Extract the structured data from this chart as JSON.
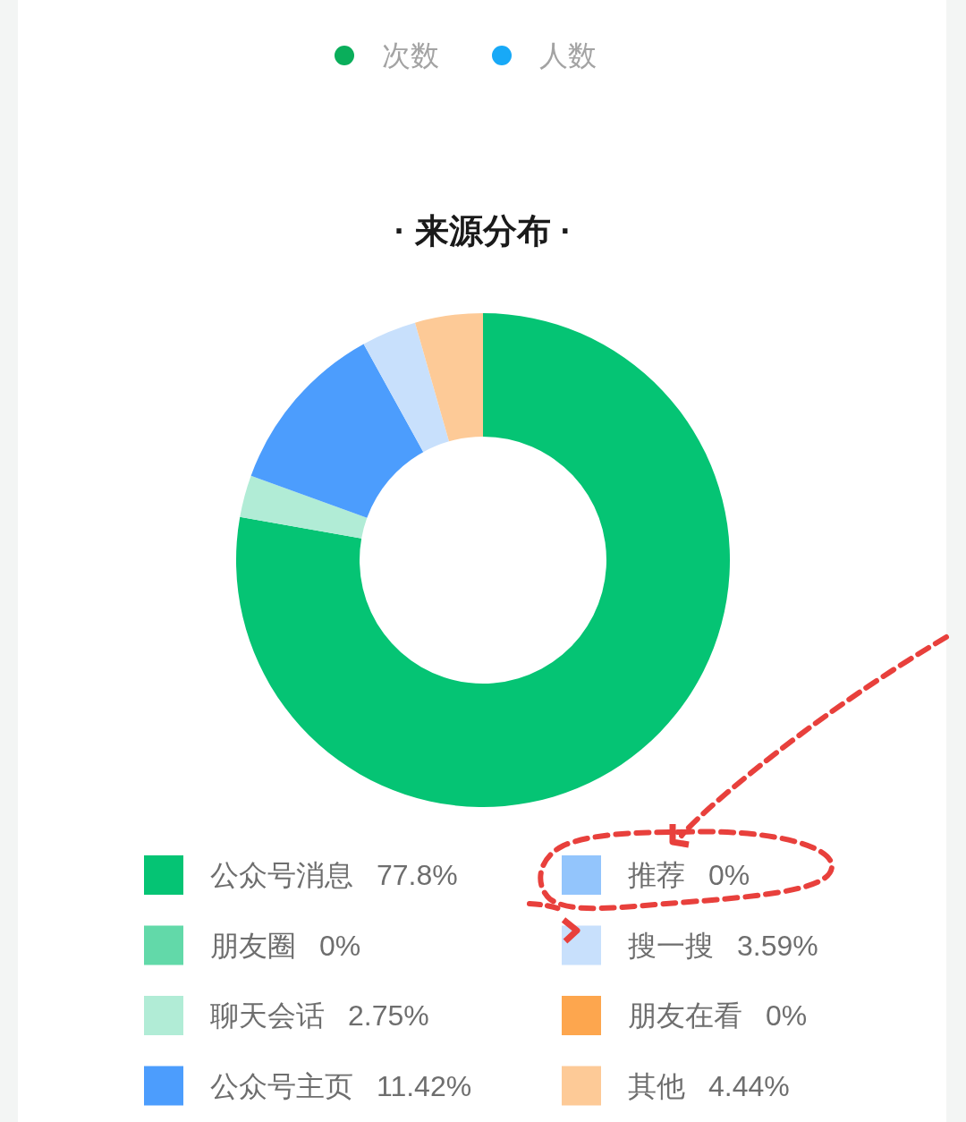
{
  "chart_data": [
    {
      "type": "other",
      "categories": [
        "次数",
        "人数"
      ],
      "colors": [
        "#0aae5b",
        "#18a9f7"
      ]
    },
    {
      "type": "donut",
      "title": "· 来源分布 ·",
      "categories": [
        "公众号消息",
        "朋友圈",
        "聊天会话",
        "公众号主页",
        "推荐",
        "搜一搜",
        "朋友在看",
        "其他"
      ],
      "values": [
        77.8,
        0,
        2.75,
        11.42,
        0,
        3.59,
        0,
        4.44
      ],
      "value_labels": [
        "77.8%",
        "0%",
        "2.75%",
        "11.42%",
        "0%",
        "3.59%",
        "0%",
        "4.44%"
      ],
      "colors": [
        "#05c474",
        "#62d9a9",
        "#b1ecd6",
        "#4c9dfd",
        "#93c5fc",
        "#c8e0fc",
        "#fda64e",
        "#fdca97"
      ],
      "legend": "bottom"
    }
  ]
}
